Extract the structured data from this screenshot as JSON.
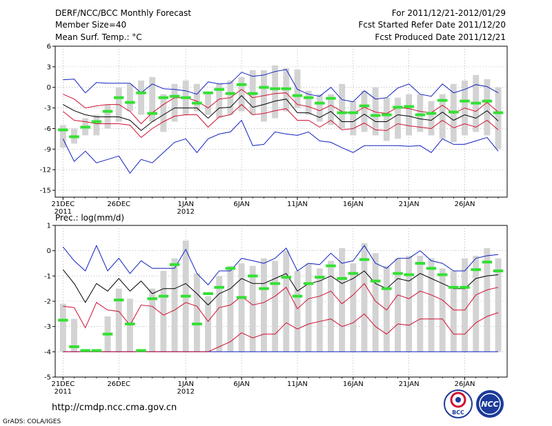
{
  "header": {
    "title": "DERF/NCC/BCC Monthly Forecast",
    "member_size": "Member Size=40",
    "for_range": "For 2011/12/21-2012/01/29",
    "fcst_started": "Fcst Started Refer Date 2011/12/20",
    "fcst_produced": "Fcst Produced Date 2011/12/21"
  },
  "footer": {
    "url": "http://cmdp.ncc.cma.gov.cn",
    "grads_credit": "GrADS: COLA/IGES",
    "logo_left_text": "BCC",
    "logo_right_text": "NCC"
  },
  "colors": {
    "box": "#d3d3d3",
    "median": "#33e033",
    "ensemble_mean": "#000000",
    "inner_band": "#d01030",
    "outer_band": "#1020c0",
    "grid": "#888888"
  },
  "chart_data": [
    {
      "type": "line",
      "title": "Mean Surf. Temp.: °C",
      "ylim": [
        -16,
        6
      ],
      "yticks": [
        6,
        3,
        0,
        -3,
        -6,
        -9,
        -12,
        -15
      ],
      "xlabels": [
        {
          "label": "21DEC",
          "sub": "2011",
          "index": 0
        },
        {
          "label": "26DEC",
          "sub": "",
          "index": 5
        },
        {
          "label": "1JAN",
          "sub": "2012",
          "index": 11
        },
        {
          "label": "6JAN",
          "sub": "",
          "index": 16
        },
        {
          "label": "11JAN",
          "sub": "",
          "index": 21
        },
        {
          "label": "16JAN",
          "sub": "",
          "index": 26
        },
        {
          "label": "21JAN",
          "sub": "",
          "index": 31
        },
        {
          "label": "26JAN",
          "sub": "",
          "index": 36
        }
      ],
      "n_days": 40,
      "box_low": [
        -8.8,
        -8.2,
        -7,
        -7,
        -6,
        -5,
        -3.5,
        -4,
        -5,
        -6.5,
        -5,
        -4,
        -3.5,
        -4,
        -4.5,
        -4,
        -3.5,
        -4,
        -5,
        -4.5,
        -3.5,
        -3,
        -4,
        -5,
        -5.5,
        -6,
        -7,
        -6.5,
        -7,
        -7.8,
        -7.5,
        -7,
        -6.5,
        -7,
        -7.5,
        -8,
        -7,
        -6.5,
        -7,
        -9
      ],
      "box_high": [
        -5.5,
        -6,
        -4.5,
        -4,
        -2.5,
        0,
        0.5,
        1,
        1.5,
        -1,
        0.5,
        1,
        0.5,
        -1,
        0.5,
        1,
        1.5,
        2.5,
        2.5,
        3.2,
        2.8,
        2.6,
        -0.5,
        -1,
        -1,
        0.5,
        -2,
        -0.5,
        0,
        -1.5,
        -1.5,
        -1,
        -1,
        -2,
        -1,
        0.5,
        1,
        1.8,
        1.2,
        0
      ],
      "median": [
        -6.2,
        -7.2,
        -5.8,
        -5,
        -3.5,
        -1.5,
        -2.2,
        -0.8,
        -3.8,
        -1.5,
        -1.3,
        -1.5,
        -2.3,
        -0.8,
        -0.3,
        -0.9,
        0.4,
        -0.9,
        0,
        -0.2,
        -0.2,
        -1.2,
        -1.5,
        -2.3,
        -1.6,
        -3.7,
        -3.7,
        -2.7,
        -4.1,
        -4,
        -2.9,
        -2.8,
        -4,
        -3.8,
        -1.9,
        -3.6,
        -2,
        -2.3,
        -2,
        -3.7
      ],
      "ens_mean": [
        -2.5,
        -3.4,
        -4,
        -4.3,
        -4.3,
        -4.3,
        -4.8,
        -6.3,
        -5,
        -4,
        -3,
        -3,
        -3,
        -4.5,
        -3,
        -2.9,
        -1.2,
        -2.9,
        -2.5,
        -2,
        -1.7,
        -3.7,
        -3.7,
        -4.4,
        -3.5,
        -5,
        -5,
        -3.9,
        -5,
        -5,
        -4,
        -4.2,
        -4.6,
        -4.8,
        -3.6,
        -4.8,
        -4,
        -4.5,
        -3.4,
        -4.9
      ],
      "inner_low": [
        -3.5,
        -4.8,
        -5,
        -5.3,
        -5.3,
        -5.3,
        -5.5,
        -7.3,
        -6,
        -5,
        -4.2,
        -4,
        -4,
        -5.8,
        -4.3,
        -4,
        -2.5,
        -4,
        -3.8,
        -3.4,
        -3.1,
        -4.8,
        -4.8,
        -5.8,
        -4.8,
        -6.2,
        -6,
        -5.2,
        -6.2,
        -6.3,
        -5.3,
        -5.6,
        -5.8,
        -6,
        -4.8,
        -5.9,
        -5.3,
        -5.8,
        -4.8,
        -6.2
      ],
      "inner_high": [
        -1,
        -1.7,
        -3,
        -2.7,
        -2.5,
        -2.5,
        -3.5,
        -5.3,
        -3.7,
        -2.5,
        -1.5,
        -1.5,
        -2,
        -3,
        -1.7,
        -1.5,
        -0.3,
        -1.5,
        -1.2,
        -0.9,
        -0.8,
        -2.5,
        -2.8,
        -3.4,
        -2.6,
        -3.5,
        -3.8,
        -2.9,
        -3.6,
        -3.8,
        -2.9,
        -3.1,
        -3.5,
        -3.7,
        -2.6,
        -3.8,
        -3,
        -3.5,
        -2.2,
        -3.6
      ],
      "outer_low": [
        -7.5,
        -10.8,
        -9.3,
        -11,
        -10.5,
        -10,
        -12.5,
        -10.5,
        -11,
        -9.5,
        -8,
        -7.5,
        -9.5,
        -7.5,
        -6.8,
        -6.5,
        -4.8,
        -8.5,
        -8.3,
        -6.5,
        -6.8,
        -7,
        -6.5,
        -7.8,
        -8,
        -8.8,
        -9.5,
        -8.5,
        -8.5,
        -8.5,
        -8.5,
        -8.6,
        -8.5,
        -9.5,
        -7.5,
        -8.3,
        -8.3,
        -7.8,
        -7.3,
        -9.3
      ],
      "outer_high": [
        1.1,
        1.2,
        -0.8,
        0.7,
        0.6,
        0.6,
        0.6,
        -0.8,
        0.5,
        -0.2,
        -0.3,
        -0.5,
        -1,
        0.8,
        0.5,
        0.6,
        2.2,
        1.6,
        1.8,
        2.3,
        2.6,
        -0.3,
        -1,
        -1.3,
        0,
        -1.8,
        -2.1,
        -0.5,
        -1.7,
        -1.5,
        -0.1,
        0.5,
        -1,
        -1.3,
        0.5,
        -0.8,
        -0.3,
        0.4,
        0.1,
        -0.8
      ]
    },
    {
      "type": "line",
      "title": "Prec.: log(mm/d)",
      "ylim": [
        -5,
        1
      ],
      "yticks": [
        1,
        0,
        -1,
        -2,
        -3,
        -4,
        -5
      ],
      "xlabels": [
        {
          "label": "21DEC",
          "sub": "2011",
          "index": 0
        },
        {
          "label": "26DEC",
          "sub": "",
          "index": 5
        },
        {
          "label": "1JAN",
          "sub": "2012",
          "index": 11
        },
        {
          "label": "6JAN",
          "sub": "",
          "index": 16
        },
        {
          "label": "11JAN",
          "sub": "",
          "index": 21
        },
        {
          "label": "16JAN",
          "sub": "",
          "index": 26
        },
        {
          "label": "21JAN",
          "sub": "",
          "index": 31
        },
        {
          "label": "26JAN",
          "sub": "",
          "index": 36
        }
      ],
      "n_days": 40,
      "box_low": [
        -4,
        -4,
        -4,
        -4,
        -4,
        -4,
        -4,
        -4,
        -4,
        -4,
        -4,
        -4,
        -4,
        -4,
        -4,
        -4,
        -4,
        -4,
        -4,
        -4,
        -4,
        -4,
        -4,
        -4,
        -4,
        -4,
        -4,
        -4,
        -4,
        -4,
        -4,
        -4,
        -4,
        -4,
        -4,
        -4,
        -4,
        -4,
        -4,
        -4
      ],
      "box_high": [
        -2.1,
        -2.7,
        -3.9,
        -3.9,
        -2.6,
        -1.5,
        -1.9,
        -3.9,
        -1.5,
        -0.8,
        -0.3,
        0.4,
        -0.9,
        -1.8,
        -1,
        -0.6,
        -0.5,
        -0.6,
        -0.3,
        -0.4,
        0,
        -0.8,
        -0.5,
        -0.7,
        -0.4,
        0.1,
        -0.5,
        0.3,
        -0.1,
        -0.6,
        -0.3,
        -0.2,
        -0.2,
        -0.3,
        -0.7,
        -0.8,
        -0.3,
        -0.2,
        0.1,
        -0.3
      ],
      "median": [
        -2.75,
        -3.8,
        -3.95,
        -3.95,
        -3.3,
        -1.95,
        -2.9,
        -3.95,
        -1.9,
        -1.8,
        -0.55,
        -1.8,
        -2.9,
        -1.7,
        -1.45,
        -0.7,
        -1.85,
        -1,
        -1.5,
        -1.3,
        -1.05,
        -1.8,
        -1.3,
        -1.05,
        -0.6,
        -1.1,
        -0.9,
        -0.35,
        -1.2,
        -1.5,
        -0.9,
        -0.95,
        -0.5,
        -0.7,
        -0.95,
        -1.45,
        -1.45,
        -0.75,
        -0.45,
        -0.8
      ],
      "ens_mean": [
        -0.75,
        -1.3,
        -2.05,
        -1.3,
        -1.6,
        -1.1,
        -1.6,
        -1.2,
        -1.7,
        -1.5,
        -1.5,
        -1.3,
        -1.7,
        -2.15,
        -1.7,
        -1.5,
        -1.1,
        -1.3,
        -1.3,
        -1.1,
        -0.9,
        -1.6,
        -1.3,
        -1.2,
        -1,
        -1.3,
        -1.1,
        -0.8,
        -1.3,
        -1.5,
        -1.1,
        -1.2,
        -0.9,
        -1.1,
        -1.3,
        -1.5,
        -1.5,
        -1.1,
        -1,
        -0.95
      ],
      "inner_low": [
        -2.2,
        -2.25,
        -3.05,
        -2.05,
        -2.35,
        -2.4,
        -2.95,
        -2.15,
        -2.2,
        -2.55,
        -2.35,
        -2.05,
        -2.2,
        -2.8,
        -2.25,
        -2.15,
        -1.8,
        -2.15,
        -2.05,
        -1.8,
        -1.45,
        -2.3,
        -1.9,
        -1.8,
        -1.6,
        -2.1,
        -1.75,
        -1.3,
        -2,
        -2.35,
        -1.75,
        -1.9,
        -1.6,
        -1.75,
        -1.95,
        -2.35,
        -2.35,
        -1.75,
        -1.55,
        -1.45
      ],
      "inner_high": [
        -2.2,
        -2.25,
        -3.05,
        -2.05,
        -2.35,
        -2.4,
        -2.95,
        -2.15,
        -2.2,
        -2.55,
        -2.35,
        -2.05,
        -2.2,
        -2.8,
        -2.25,
        -2.15,
        -1.8,
        -2.15,
        -2.05,
        -1.8,
        -1.45,
        -2.3,
        -1.9,
        -1.8,
        -1.6,
        -2.1,
        -1.75,
        -1.3,
        -2,
        -2.35,
        -1.75,
        -1.9,
        -1.6,
        -1.75,
        -1.95,
        -2.35,
        -2.35,
        -1.75,
        -1.55,
        -1.45
      ],
      "inner_low2": [
        -4,
        -4,
        -4,
        -4,
        -4,
        -4,
        -4,
        -4,
        -4,
        -4,
        -4,
        -4,
        -4,
        -4,
        -3.8,
        -3.6,
        -3.25,
        -3.45,
        -3.3,
        -3.3,
        -2.85,
        -3.1,
        -2.9,
        -2.8,
        -2.7,
        -3,
        -2.85,
        -2.5,
        -3,
        -3.3,
        -2.9,
        -2.95,
        -2.7,
        -2.7,
        -2.7,
        -3.3,
        -3.3,
        -2.85,
        -2.6,
        -2.45
      ],
      "outer_low": [
        -4,
        -4,
        -4,
        -4,
        -4,
        -4,
        -4,
        -4,
        -4,
        -4,
        -4,
        -4,
        -4,
        -4,
        -4,
        -4,
        -4,
        -4,
        -4,
        -4,
        -4,
        -4,
        -4,
        -4,
        -4,
        -4,
        -4,
        -4,
        -4,
        -4,
        -4,
        -4,
        -4,
        -4,
        -4,
        -4,
        -4,
        -4,
        -4,
        -4
      ],
      "outer_high": [
        0.15,
        -0.4,
        -0.8,
        0.2,
        -0.8,
        -0.3,
        -0.9,
        -0.4,
        -0.7,
        -0.7,
        -0.7,
        0.05,
        -0.9,
        -1.35,
        -0.8,
        -0.8,
        -0.3,
        -0.4,
        -0.5,
        -0.3,
        0.1,
        -0.8,
        -0.5,
        -0.55,
        -0.1,
        -0.5,
        -0.4,
        0.2,
        -0.5,
        -0.7,
        -0.3,
        -0.3,
        0,
        -0.4,
        -0.5,
        -0.8,
        -0.8,
        -0.3,
        -0.2,
        -0.15
      ]
    }
  ]
}
